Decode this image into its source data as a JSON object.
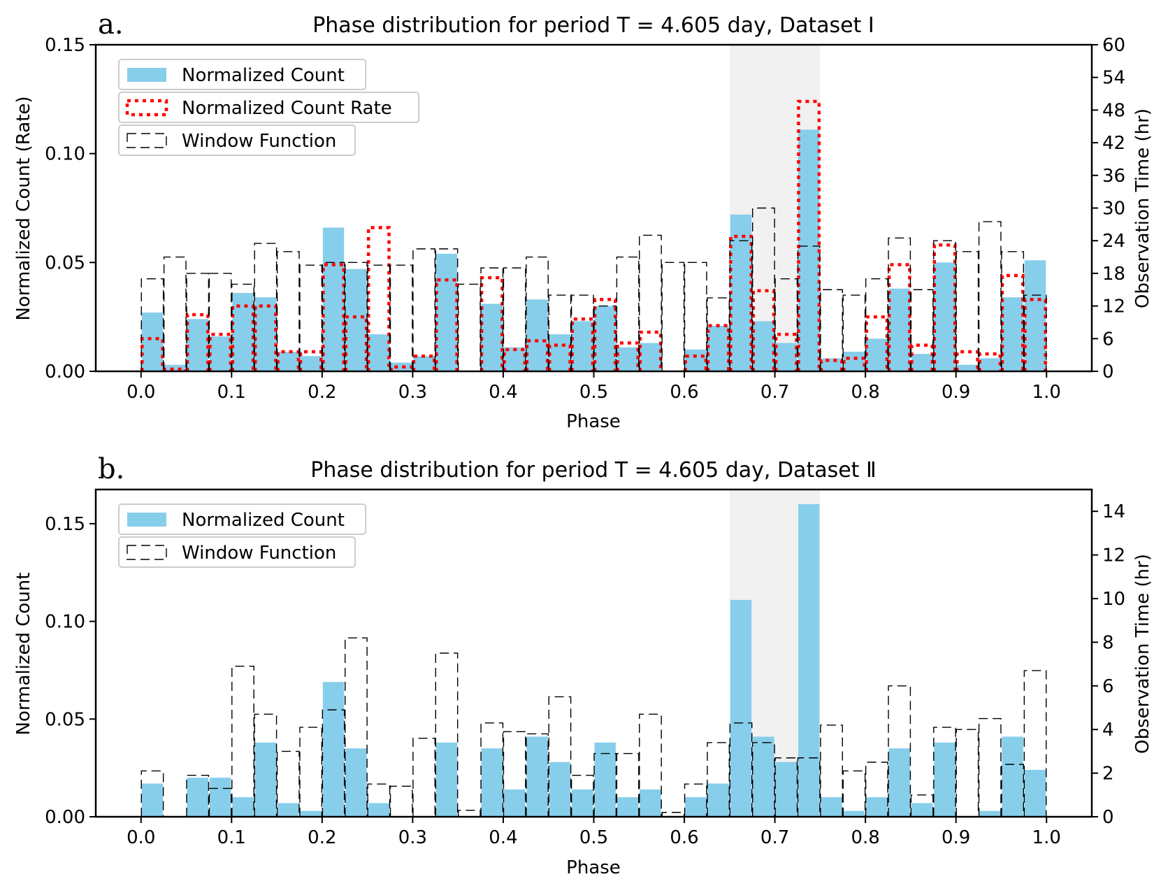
{
  "chart_data": [
    {
      "type": "bar",
      "panel_label": "a.",
      "title": "Phase distribution for period T = 4.605 day, Dataset I",
      "xlabel": "Phase",
      "ylabel": "Normalized Count (Rate)",
      "ylabel_right": "Observation Time (hr)",
      "xlim": [
        -0.05,
        1.05
      ],
      "ylim": [
        0,
        0.15
      ],
      "ylim_right": [
        0,
        60
      ],
      "xticks": [
        0.0,
        0.1,
        0.2,
        0.3,
        0.4,
        0.5,
        0.6,
        0.7,
        0.8,
        0.9,
        1.0
      ],
      "xtick_labels": [
        "0.0",
        "0.1",
        "0.2",
        "0.3",
        "0.4",
        "0.5",
        "0.6",
        "0.7",
        "0.8",
        "0.9",
        "1.0"
      ],
      "yticks": [
        0.0,
        0.05,
        0.1,
        0.15
      ],
      "ytick_labels": [
        "0.00",
        "0.05",
        "0.10",
        "0.15"
      ],
      "yticks_right": [
        0,
        6,
        12,
        18,
        24,
        30,
        36,
        42,
        48,
        54,
        60
      ],
      "ytick_labels_right": [
        "0",
        "6",
        "12",
        "18",
        "24",
        "30",
        "36",
        "42",
        "48",
        "54",
        "60"
      ],
      "bin_width": 0.025,
      "shaded_region": [
        0.65,
        0.75
      ],
      "bin_left_edges": [
        0.0,
        0.025,
        0.05,
        0.075,
        0.1,
        0.125,
        0.15,
        0.175,
        0.2,
        0.225,
        0.25,
        0.275,
        0.3,
        0.325,
        0.35,
        0.375,
        0.4,
        0.425,
        0.45,
        0.475,
        0.5,
        0.525,
        0.55,
        0.575,
        0.6,
        0.625,
        0.65,
        0.675,
        0.7,
        0.725,
        0.75,
        0.775,
        0.8,
        0.825,
        0.85,
        0.875,
        0.9,
        0.925,
        0.95,
        0.975
      ],
      "legend": [
        "Normalized Count",
        "Normalized Count Rate",
        "Window Function"
      ],
      "legend_position": "top-left",
      "series": [
        {
          "name": "Normalized Count",
          "style": "filled",
          "axis": "left",
          "color": "#87ceeb",
          "values": [
            0.027,
            0.003,
            0.024,
            0.016,
            0.036,
            0.034,
            0.009,
            0.007,
            0.066,
            0.047,
            0.017,
            0.004,
            0.007,
            0.054,
            0.0,
            0.031,
            0.011,
            0.033,
            0.017,
            0.023,
            0.03,
            0.011,
            0.013,
            0.0,
            0.01,
            0.021,
            0.072,
            0.023,
            0.013,
            0.111,
            0.006,
            0.009,
            0.015,
            0.038,
            0.008,
            0.05,
            0.003,
            0.006,
            0.034,
            0.051
          ]
        },
        {
          "name": "Normalized Count Rate",
          "style": "dotted-step",
          "axis": "left",
          "color": "#ff0000",
          "values": [
            0.015,
            0.001,
            0.026,
            0.017,
            0.03,
            0.03,
            0.009,
            0.009,
            0.049,
            0.025,
            0.066,
            0.002,
            0.007,
            0.042,
            0.0,
            0.043,
            0.01,
            0.014,
            0.012,
            0.024,
            0.033,
            0.013,
            0.018,
            0.0,
            0.007,
            0.021,
            0.062,
            0.037,
            0.017,
            0.124,
            0.005,
            0.006,
            0.025,
            0.049,
            0.012,
            0.058,
            0.009,
            0.008,
            0.044,
            0.033
          ]
        },
        {
          "name": "Window Function",
          "style": "dashed-step",
          "axis": "right",
          "color": "#000000",
          "values": [
            17,
            21,
            18,
            18,
            16,
            23.5,
            22,
            19.5,
            20,
            20,
            19.5,
            19.5,
            22.5,
            22.5,
            16,
            19,
            19,
            21,
            14,
            14,
            12,
            21,
            25,
            20,
            20,
            13.5,
            24,
            30,
            17,
            23,
            15,
            14,
            17,
            24.5,
            15,
            24,
            22,
            27.5,
            22,
            14
          ]
        }
      ]
    },
    {
      "type": "bar",
      "panel_label": "b.",
      "title": "Phase distribution for period T = 4.605 day, Dataset Ⅱ",
      "xlabel": "Phase",
      "ylabel": "Normalized Count",
      "ylabel_right": "Observation Time (hr)",
      "xlim": [
        -0.05,
        1.05
      ],
      "ylim": [
        0,
        0.1675
      ],
      "ylim_right": [
        0,
        15
      ],
      "xticks": [
        0.0,
        0.1,
        0.2,
        0.3,
        0.4,
        0.5,
        0.6,
        0.7,
        0.8,
        0.9,
        1.0
      ],
      "xtick_labels": [
        "0.0",
        "0.1",
        "0.2",
        "0.3",
        "0.4",
        "0.5",
        "0.6",
        "0.7",
        "0.8",
        "0.9",
        "1.0"
      ],
      "yticks": [
        0.0,
        0.05,
        0.1,
        0.15
      ],
      "ytick_labels": [
        "0.00",
        "0.05",
        "0.10",
        "0.15"
      ],
      "yticks_right": [
        0,
        2,
        4,
        6,
        8,
        10,
        12,
        14
      ],
      "ytick_labels_right": [
        "0",
        "2",
        "4",
        "6",
        "8",
        "10",
        "12",
        "14"
      ],
      "bin_width": 0.025,
      "shaded_region": [
        0.65,
        0.75
      ],
      "bin_left_edges": [
        0.0,
        0.025,
        0.05,
        0.075,
        0.1,
        0.125,
        0.15,
        0.175,
        0.2,
        0.225,
        0.25,
        0.275,
        0.3,
        0.325,
        0.35,
        0.375,
        0.4,
        0.425,
        0.45,
        0.475,
        0.5,
        0.525,
        0.55,
        0.575,
        0.6,
        0.625,
        0.65,
        0.675,
        0.7,
        0.725,
        0.75,
        0.775,
        0.8,
        0.825,
        0.85,
        0.875,
        0.9,
        0.925,
        0.95,
        0.975
      ],
      "legend": [
        "Normalized Count",
        "Window Function"
      ],
      "legend_position": "top-left",
      "series": [
        {
          "name": "Normalized Count",
          "style": "filled",
          "axis": "left",
          "color": "#87ceeb",
          "values": [
            0.017,
            0.0,
            0.02,
            0.02,
            0.01,
            0.038,
            0.007,
            0.003,
            0.069,
            0.035,
            0.007,
            0.0,
            0.0,
            0.038,
            0.0,
            0.035,
            0.014,
            0.041,
            0.028,
            0.014,
            0.038,
            0.01,
            0.014,
            0.0,
            0.01,
            0.017,
            0.111,
            0.041,
            0.028,
            0.16,
            0.01,
            0.003,
            0.01,
            0.035,
            0.007,
            0.038,
            0.0,
            0.003,
            0.041,
            0.024
          ]
        },
        {
          "name": "Window Function",
          "style": "dashed-step",
          "axis": "right",
          "color": "#000000",
          "values": [
            2.1,
            0.0,
            1.9,
            1.3,
            6.9,
            4.7,
            3.0,
            4.1,
            4.9,
            8.2,
            1.5,
            1.4,
            3.6,
            7.5,
            0.3,
            4.3,
            3.9,
            3.8,
            5.5,
            1.9,
            2.9,
            2.9,
            4.7,
            0.2,
            1.5,
            3.4,
            4.3,
            3.4,
            2.7,
            2.7,
            4.2,
            2.1,
            2.5,
            6.0,
            1.0,
            4.1,
            4.0,
            4.5,
            2.4,
            6.7
          ]
        }
      ]
    }
  ]
}
